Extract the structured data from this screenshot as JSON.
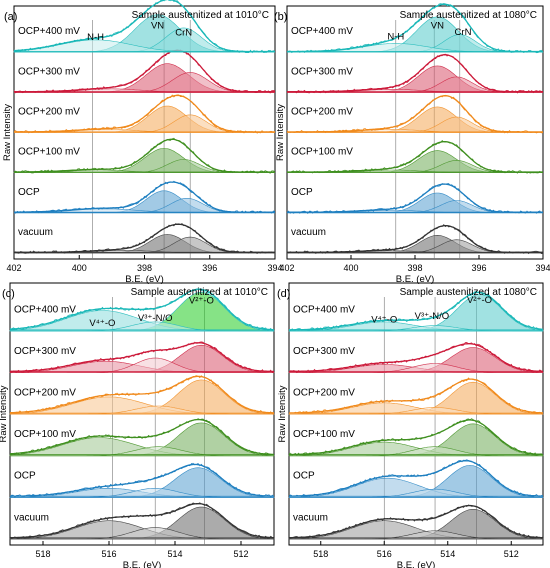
{
  "figure": {
    "colors": {
      "vacuum": "#333333",
      "OCP": "#1e7fc0",
      "OCP+100 mV": "#3f8f1f",
      "OCP+200 mV": "#f08a1c",
      "OCP+300 mV": "#cc1a3a",
      "OCP+400 mV": "#1ab8b8",
      "accent_green": "#22cc22",
      "frame": "#000000",
      "guide": "#777777"
    }
  },
  "chart_data": [
    {
      "id": "a",
      "type": "line",
      "panel_label": "(a)",
      "title": "Sample austenitized at 1010°C",
      "xlabel": "B.E. (eV)",
      "ylabel": "Raw Intensity",
      "xlim": [
        402,
        394
      ],
      "xticks": [
        402,
        400,
        398,
        396,
        394
      ],
      "reversed_x": true,
      "grid": false,
      "baseline": 0.0015,
      "peaks_annotated": [
        {
          "label": "N-H",
          "x": 399.5,
          "level": 0.018
        },
        {
          "label": "VN",
          "x": 397.6,
          "level": 0.005
        },
        {
          "label": "CrN",
          "x": 396.8,
          "level": 0.013
        }
      ],
      "guide_lines": [
        399.6,
        397.4,
        396.6
      ],
      "series": [
        {
          "name": "vacuum",
          "components": [
            {
              "center": 397.3,
              "amplitude": 0.042,
              "width": 0.55
            },
            {
              "center": 396.6,
              "amplitude": 0.036,
              "width": 0.5
            },
            {
              "center": 398.6,
              "amplitude": 0.006,
              "width": 0.9
            }
          ]
        },
        {
          "name": "OCP",
          "components": [
            {
              "center": 397.4,
              "amplitude": 0.05,
              "width": 0.55
            },
            {
              "center": 396.7,
              "amplitude": 0.033,
              "width": 0.5
            },
            {
              "center": 399.2,
              "amplitude": 0.009,
              "width": 1.0
            }
          ]
        },
        {
          "name": "OCP+100 mV",
          "components": [
            {
              "center": 397.4,
              "amplitude": 0.055,
              "width": 0.6
            },
            {
              "center": 396.8,
              "amplitude": 0.03,
              "width": 0.5
            },
            {
              "center": 399.4,
              "amplitude": 0.006,
              "width": 0.9
            }
          ]
        },
        {
          "name": "OCP+200 mV",
          "components": [
            {
              "center": 397.3,
              "amplitude": 0.06,
              "width": 0.6
            },
            {
              "center": 396.6,
              "amplitude": 0.04,
              "width": 0.5
            },
            {
              "center": 399.1,
              "amplitude": 0.007,
              "width": 0.9
            }
          ]
        },
        {
          "name": "OCP+300 mV",
          "components": [
            {
              "center": 397.3,
              "amplitude": 0.065,
              "width": 0.65
            },
            {
              "center": 396.6,
              "amplitude": 0.045,
              "width": 0.55
            },
            {
              "center": 399.0,
              "amplitude": 0.008,
              "width": 0.9
            }
          ]
        },
        {
          "name": "OCP+400 mV",
          "components": [
            {
              "center": 397.6,
              "amplitude": 0.085,
              "width": 0.7
            },
            {
              "center": 396.8,
              "amplitude": 0.055,
              "width": 0.55
            },
            {
              "center": 399.5,
              "amplitude": 0.028,
              "width": 1.1
            }
          ]
        }
      ]
    },
    {
      "id": "b",
      "type": "line",
      "panel_label": "(b)",
      "title": "Sample austenitized at 1080°C",
      "xlabel": "B.E. (eV)",
      "ylabel": "Raw Intensity",
      "xlim": [
        402,
        394
      ],
      "xticks": [
        402,
        400,
        398,
        396,
        394
      ],
      "reversed_x": true,
      "grid": false,
      "baseline": 0.0015,
      "peaks_annotated": [
        {
          "label": "N-H",
          "x": 398.6,
          "level": 0.017
        },
        {
          "label": "VN",
          "x": 397.3,
          "level": 0.005
        },
        {
          "label": "CrN",
          "x": 396.5,
          "level": 0.012
        }
      ],
      "guide_lines": [
        398.6,
        397.4,
        396.6
      ],
      "series": [
        {
          "name": "vacuum",
          "components": [
            {
              "center": 397.3,
              "amplitude": 0.04,
              "width": 0.55
            },
            {
              "center": 396.7,
              "amplitude": 0.03,
              "width": 0.5
            },
            {
              "center": 398.7,
              "amplitude": 0.005,
              "width": 0.9
            }
          ]
        },
        {
          "name": "OCP",
          "components": [
            {
              "center": 397.3,
              "amplitude": 0.045,
              "width": 0.55
            },
            {
              "center": 396.7,
              "amplitude": 0.028,
              "width": 0.5
            },
            {
              "center": 398.7,
              "amplitude": 0.006,
              "width": 0.9
            }
          ]
        },
        {
          "name": "OCP+100 mV",
          "components": [
            {
              "center": 397.3,
              "amplitude": 0.05,
              "width": 0.6
            },
            {
              "center": 396.7,
              "amplitude": 0.028,
              "width": 0.5
            },
            {
              "center": 398.7,
              "amplitude": 0.006,
              "width": 0.9
            }
          ]
        },
        {
          "name": "OCP+200 mV",
          "components": [
            {
              "center": 397.3,
              "amplitude": 0.058,
              "width": 0.6
            },
            {
              "center": 396.7,
              "amplitude": 0.035,
              "width": 0.5
            },
            {
              "center": 398.7,
              "amplitude": 0.007,
              "width": 0.9
            }
          ]
        },
        {
          "name": "OCP+300 mV",
          "components": [
            {
              "center": 397.3,
              "amplitude": 0.06,
              "width": 0.6
            },
            {
              "center": 396.7,
              "amplitude": 0.035,
              "width": 0.5
            },
            {
              "center": 398.7,
              "amplitude": 0.007,
              "width": 0.9
            }
          ]
        },
        {
          "name": "OCP+400 mV",
          "components": [
            {
              "center": 397.3,
              "amplitude": 0.08,
              "width": 0.65
            },
            {
              "center": 396.6,
              "amplitude": 0.04,
              "width": 0.5
            },
            {
              "center": 398.6,
              "amplitude": 0.02,
              "width": 1.0
            }
          ]
        }
      ]
    },
    {
      "id": "c",
      "type": "line",
      "panel_label": "(c)",
      "title": "Sample austenitized at 1010°C",
      "xlabel": "B.E. (eV)",
      "ylabel": "Raw Intensity",
      "xlim": [
        519,
        511
      ],
      "xticks": [
        518,
        516,
        514,
        512
      ],
      "reversed_x": true,
      "grid": false,
      "baseline": 0.0025,
      "peaks_annotated": [
        {
          "label": "V⁴⁺-O",
          "x": 516.2,
          "level": 0.028
        },
        {
          "label": "V³⁺-N/O",
          "x": 514.6,
          "level": 0.022
        },
        {
          "label": "V²⁺-O",
          "x": 513.2,
          "level": 0.003
        }
      ],
      "guide_lines": [
        515.9,
        514.6,
        513.1
      ],
      "series": [
        {
          "name": "vacuum",
          "components": [
            {
              "center": 513.2,
              "amplitude": 0.07,
              "width": 0.7
            },
            {
              "center": 516.0,
              "amplitude": 0.04,
              "width": 1.0
            },
            {
              "center": 514.6,
              "amplitude": 0.025,
              "width": 0.7
            }
          ]
        },
        {
          "name": "OCP",
          "components": [
            {
              "center": 513.3,
              "amplitude": 0.065,
              "width": 0.7
            },
            {
              "center": 516.0,
              "amplitude": 0.02,
              "width": 1.0
            },
            {
              "center": 514.6,
              "amplitude": 0.02,
              "width": 0.7
            }
          ]
        },
        {
          "name": "OCP+100 mV",
          "components": [
            {
              "center": 513.2,
              "amplitude": 0.072,
              "width": 0.7
            },
            {
              "center": 516.3,
              "amplitude": 0.04,
              "width": 1.1
            },
            {
              "center": 514.5,
              "amplitude": 0.02,
              "width": 0.7
            }
          ]
        },
        {
          "name": "OCP+200 mV",
          "components": [
            {
              "center": 513.2,
              "amplitude": 0.075,
              "width": 0.7
            },
            {
              "center": 516.0,
              "amplitude": 0.038,
              "width": 1.1
            },
            {
              "center": 514.5,
              "amplitude": 0.018,
              "width": 0.7
            }
          ]
        },
        {
          "name": "OCP+300 mV",
          "components": [
            {
              "center": 513.2,
              "amplitude": 0.06,
              "width": 0.65
            },
            {
              "center": 516.1,
              "amplitude": 0.025,
              "width": 1.0
            },
            {
              "center": 514.6,
              "amplitude": 0.032,
              "width": 0.6
            }
          ]
        },
        {
          "name": "OCP+400 mV",
          "components": [
            {
              "center": 513.2,
              "amplitude": 0.085,
              "width": 0.7
            },
            {
              "center": 516.2,
              "amplitude": 0.045,
              "width": 1.1
            },
            {
              "center": 514.6,
              "amplitude": 0.02,
              "width": 0.7
            }
          ]
        }
      ]
    },
    {
      "id": "d",
      "type": "line",
      "panel_label": "(d)",
      "title": "Sample austenitized at 1080°C",
      "xlabel": "B.E. (eV)",
      "ylabel": "Raw Intensity",
      "xlim": [
        519,
        511
      ],
      "xticks": [
        518,
        516,
        514,
        512
      ],
      "reversed_x": true,
      "grid": false,
      "baseline": 0.0025,
      "peaks_annotated": [
        {
          "label": "V⁴⁺-O",
          "x": 516.0,
          "level": 0.024
        },
        {
          "label": "V³⁺-N/O",
          "x": 514.5,
          "level": 0.02
        },
        {
          "label": "V²⁺-O",
          "x": 513.0,
          "level": 0.002
        }
      ],
      "guide_lines": [
        516.0,
        514.4,
        513.1
      ],
      "series": [
        {
          "name": "vacuum",
          "components": [
            {
              "center": 513.2,
              "amplitude": 0.065,
              "width": 0.7
            },
            {
              "center": 516.0,
              "amplitude": 0.04,
              "width": 1.0
            },
            {
              "center": 514.4,
              "amplitude": 0.018,
              "width": 0.7
            }
          ]
        },
        {
          "name": "OCP",
          "components": [
            {
              "center": 513.3,
              "amplitude": 0.07,
              "width": 0.7
            },
            {
              "center": 515.9,
              "amplitude": 0.042,
              "width": 1.0
            },
            {
              "center": 514.4,
              "amplitude": 0.018,
              "width": 0.7
            }
          ]
        },
        {
          "name": "OCP+100 mV",
          "components": [
            {
              "center": 513.2,
              "amplitude": 0.07,
              "width": 0.7
            },
            {
              "center": 516.0,
              "amplitude": 0.03,
              "width": 1.0
            },
            {
              "center": 514.4,
              "amplitude": 0.02,
              "width": 0.7
            }
          ]
        },
        {
          "name": "OCP+200 mV",
          "components": [
            {
              "center": 513.2,
              "amplitude": 0.07,
              "width": 0.7
            },
            {
              "center": 516.0,
              "amplitude": 0.025,
              "width": 1.0
            },
            {
              "center": 514.4,
              "amplitude": 0.015,
              "width": 0.7
            }
          ]
        },
        {
          "name": "OCP+300 mV",
          "components": [
            {
              "center": 513.2,
              "amplitude": 0.055,
              "width": 0.7
            },
            {
              "center": 516.0,
              "amplitude": 0.018,
              "width": 1.0
            },
            {
              "center": 514.4,
              "amplitude": 0.02,
              "width": 0.7
            }
          ]
        },
        {
          "name": "OCP+400 mV",
          "components": [
            {
              "center": 513.0,
              "amplitude": 0.08,
              "width": 0.7
            },
            {
              "center": 516.0,
              "amplitude": 0.02,
              "width": 1.0
            },
            {
              "center": 514.4,
              "amplitude": 0.012,
              "width": 0.7
            }
          ]
        }
      ]
    }
  ]
}
